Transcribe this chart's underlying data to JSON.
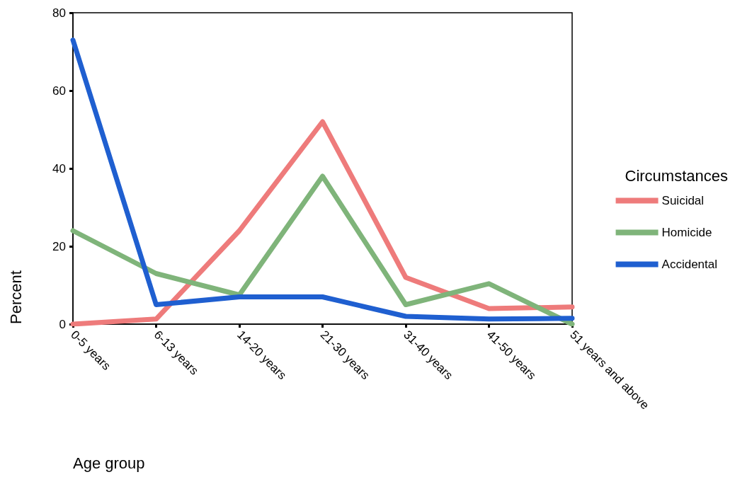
{
  "chart_data": {
    "type": "line",
    "xlabel": "Age group",
    "ylabel": "Percent",
    "legend_title": "Circumstances",
    "categories": [
      "0-5 years",
      "6-13 years",
      "14-20 years",
      "21-30 years",
      "31-40 years",
      "41-50 years",
      "51 years and above"
    ],
    "series": [
      {
        "name": "Suicidal",
        "color": "#ee7b7b",
        "values": [
          0,
          1.3,
          24,
          52,
          12,
          4,
          4.4
        ]
      },
      {
        "name": "Homicide",
        "color": "#7fb47a",
        "values": [
          24,
          13,
          7.5,
          38,
          5,
          10.4,
          0
        ]
      },
      {
        "name": "Accidental",
        "color": "#1f5fd0",
        "values": [
          73,
          5,
          7,
          7,
          2,
          1.3,
          1.5
        ]
      }
    ],
    "ylim": [
      0,
      80
    ],
    "yticks": [
      0,
      20,
      40,
      60,
      80
    ],
    "grid": false,
    "legend": "right",
    "marker": "none",
    "line_style": "solid"
  }
}
